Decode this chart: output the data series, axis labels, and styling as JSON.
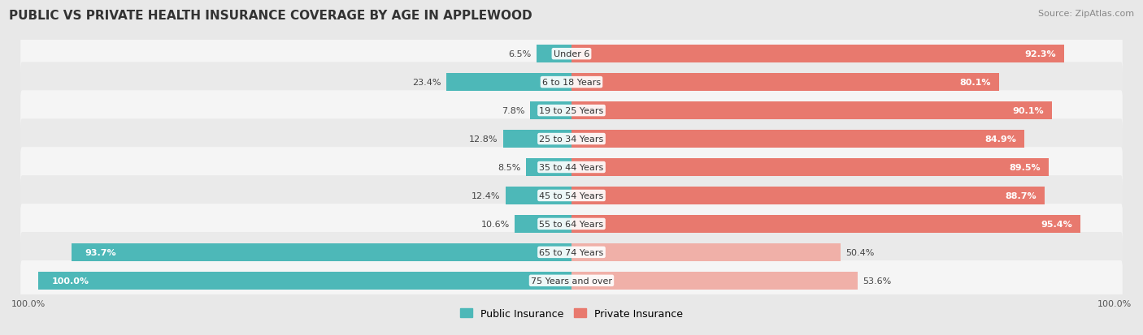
{
  "title": "PUBLIC VS PRIVATE HEALTH INSURANCE COVERAGE BY AGE IN APPLEWOOD",
  "source": "Source: ZipAtlas.com",
  "categories": [
    "Under 6",
    "6 to 18 Years",
    "19 to 25 Years",
    "25 to 34 Years",
    "35 to 44 Years",
    "45 to 54 Years",
    "55 to 64 Years",
    "65 to 74 Years",
    "75 Years and over"
  ],
  "public_values": [
    6.5,
    23.4,
    7.8,
    12.8,
    8.5,
    12.4,
    10.6,
    93.7,
    100.0
  ],
  "private_values": [
    92.3,
    80.1,
    90.1,
    84.9,
    89.5,
    88.7,
    95.4,
    50.4,
    53.6
  ],
  "public_color": "#4db8b8",
  "private_color": "#e8796e",
  "private_color_light": "#f0b0a8",
  "background_color": "#e8e8e8",
  "row_bg_odd": "#f5f5f5",
  "row_bg_even": "#eaeaea",
  "bar_height": 0.62,
  "max_value": 100.0,
  "x_left_label": "100.0%",
  "x_right_label": "100.0%",
  "legend_public": "Public Insurance",
  "legend_private": "Private Insurance",
  "title_fontsize": 11,
  "source_fontsize": 8,
  "label_fontsize": 8,
  "cat_fontsize": 8
}
